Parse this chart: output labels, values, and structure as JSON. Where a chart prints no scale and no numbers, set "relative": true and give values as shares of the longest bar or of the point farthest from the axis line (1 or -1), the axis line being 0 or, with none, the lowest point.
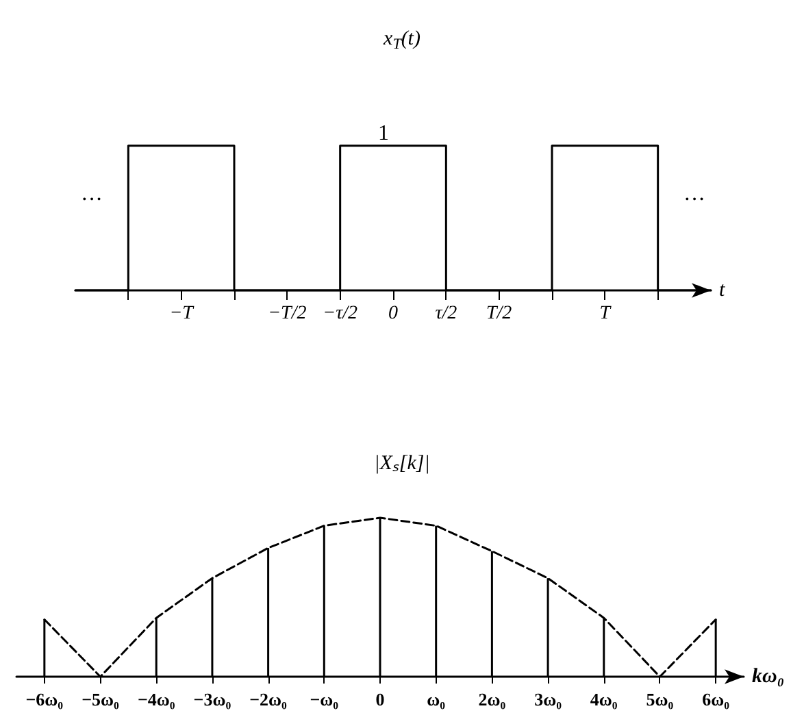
{
  "chart_data": [
    {
      "type": "step",
      "title": "x$_{T}$(t)",
      "xlabel": "t",
      "relative": true,
      "categories": [
        null,
        null,
        "−T",
        null,
        "−T/2",
        "−τ/2",
        "0",
        "τ/2",
        "T/2",
        null,
        "T",
        null,
        null
      ],
      "series": [
        {
          "color": "#000000",
          "values": [
            0,
            0,
            1,
            1,
            0,
            0,
            1,
            1,
            0,
            0,
            1,
            1,
            0
          ]
        }
      ],
      "annotations": [
        {
          "text": "1",
          "x": "0",
          "y": 1
        },
        "···",
        "···"
      ],
      "marker": "none"
    },
    {
      "type": "bar",
      "title": "|Xₛ[k]|",
      "xlabel": "kω₀",
      "relative": true,
      "categories": [
        "−6ω₀",
        "−5ω₀",
        "−4ω₀",
        "−3ω₀",
        "−2ω₀",
        "−ω₀",
        "0",
        "ω₀",
        "2ω₀",
        "3ω₀",
        "4ω₀",
        "5ω₀",
        "6ω₀"
      ],
      "series": [
        {
          "color": "#000000",
          "values": [
            0.36,
            0,
            0.37,
            0.62,
            0.81,
            0.95,
            1,
            0.95,
            0.79,
            0.62,
            0.37,
            0,
            0.36
          ]
        },
        {
          "type": "line",
          "color": "#000000",
          "line_style": "dashed",
          "values": [
            0.36,
            0,
            0.37,
            0.62,
            0.81,
            0.95,
            1,
            0.95,
            0.79,
            0.62,
            0.37,
            0,
            0.36
          ]
        }
      ],
      "marker": "none"
    }
  ]
}
